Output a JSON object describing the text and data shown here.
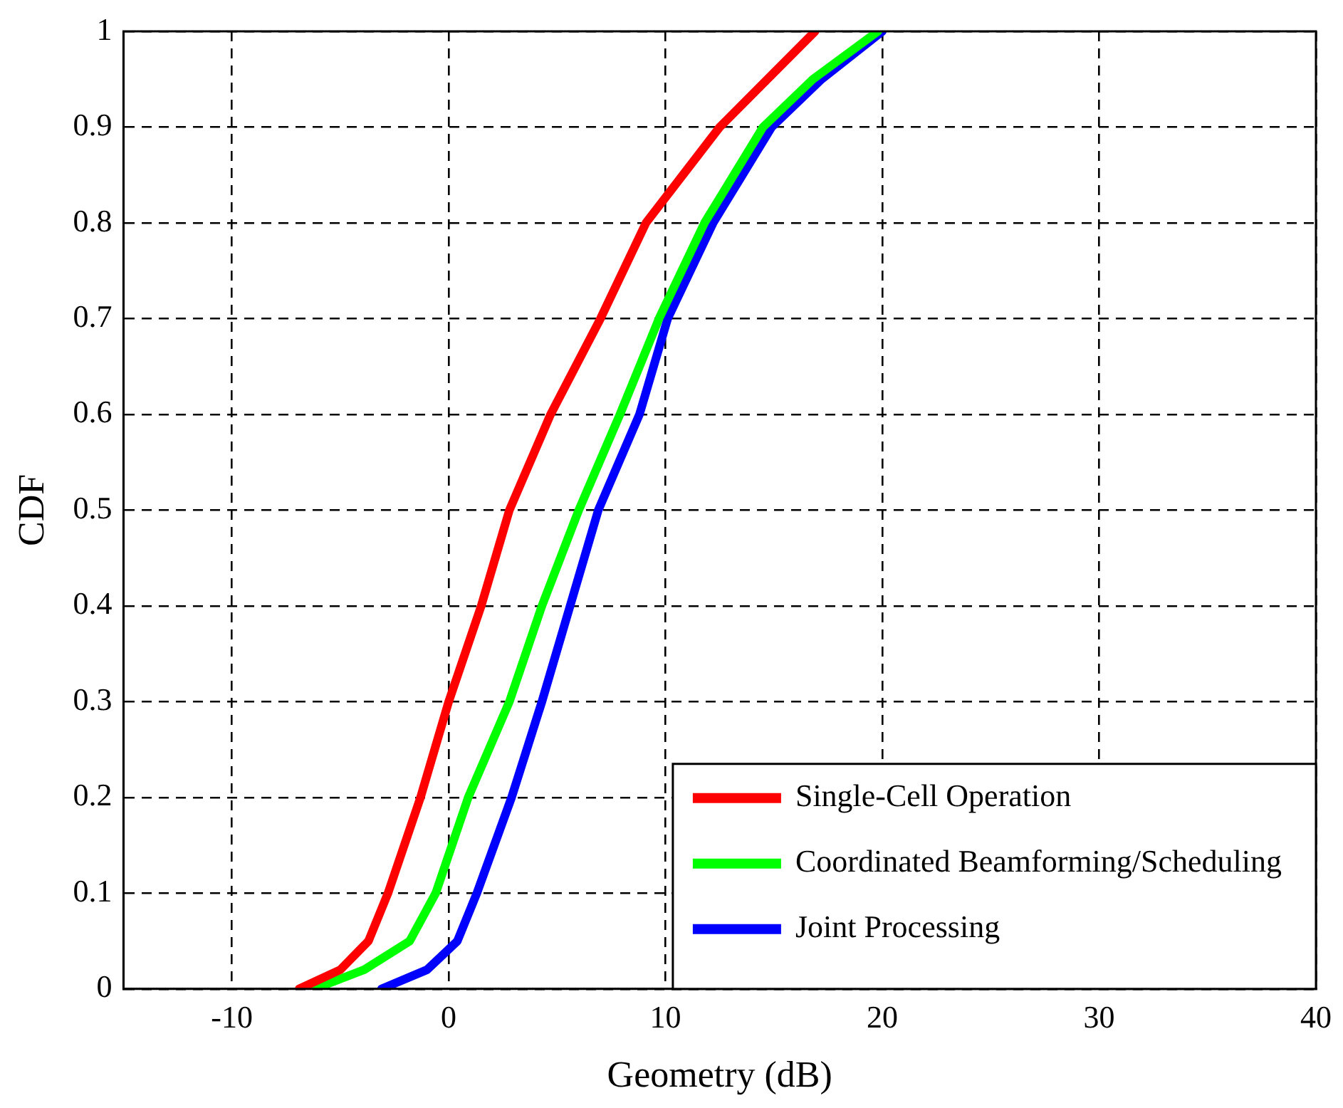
{
  "chart_data": {
    "type": "line",
    "xlabel": "Geometry (dB)",
    "ylabel": "CDF",
    "xlim": [
      -15,
      40
    ],
    "xticks": [
      -10,
      0,
      10,
      20,
      30,
      40
    ],
    "ylim": [
      0,
      1
    ],
    "yticks": [
      0,
      0.1,
      0.2,
      0.3,
      0.4,
      0.5,
      0.6,
      0.7,
      0.8,
      0.9,
      1
    ],
    "grid": true,
    "legend": "bottom right",
    "marker": "none",
    "line_style": "solid",
    "series": [
      {
        "name": "Single-Cell Operation",
        "color": "#ff0000",
        "x": [
          -6.9,
          -5.0,
          -3.7,
          -2.8,
          -1.3,
          0.0,
          1.5,
          2.8,
          4.7,
          7.0,
          9.1,
          12.5,
          14.7,
          16.9
        ],
        "values": [
          0,
          0.02,
          0.05,
          0.1,
          0.2,
          0.3,
          0.4,
          0.5,
          0.6,
          0.7,
          0.8,
          0.9,
          0.95,
          1
        ]
      },
      {
        "name": "Coordinated Beamforming/Scheduling",
        "color": "#00ff00",
        "x": [
          -6.2,
          -3.9,
          -1.8,
          -0.6,
          0.9,
          2.8,
          4.3,
          6.0,
          7.9,
          9.7,
          11.8,
          14.5,
          16.8,
          19.8
        ],
        "values": [
          0,
          0.02,
          0.05,
          0.1,
          0.2,
          0.3,
          0.4,
          0.5,
          0.6,
          0.7,
          0.8,
          0.9,
          0.95,
          1
        ]
      },
      {
        "name": "Joint Processing",
        "color": "#0000ff",
        "x": [
          -3.1,
          -1.0,
          0.4,
          1.3,
          2.9,
          4.3,
          5.6,
          6.9,
          8.8,
          10.1,
          12.2,
          14.9,
          17.2,
          20.0
        ],
        "values": [
          0,
          0.02,
          0.05,
          0.1,
          0.2,
          0.3,
          0.4,
          0.5,
          0.6,
          0.7,
          0.8,
          0.9,
          0.95,
          1
        ]
      }
    ]
  }
}
